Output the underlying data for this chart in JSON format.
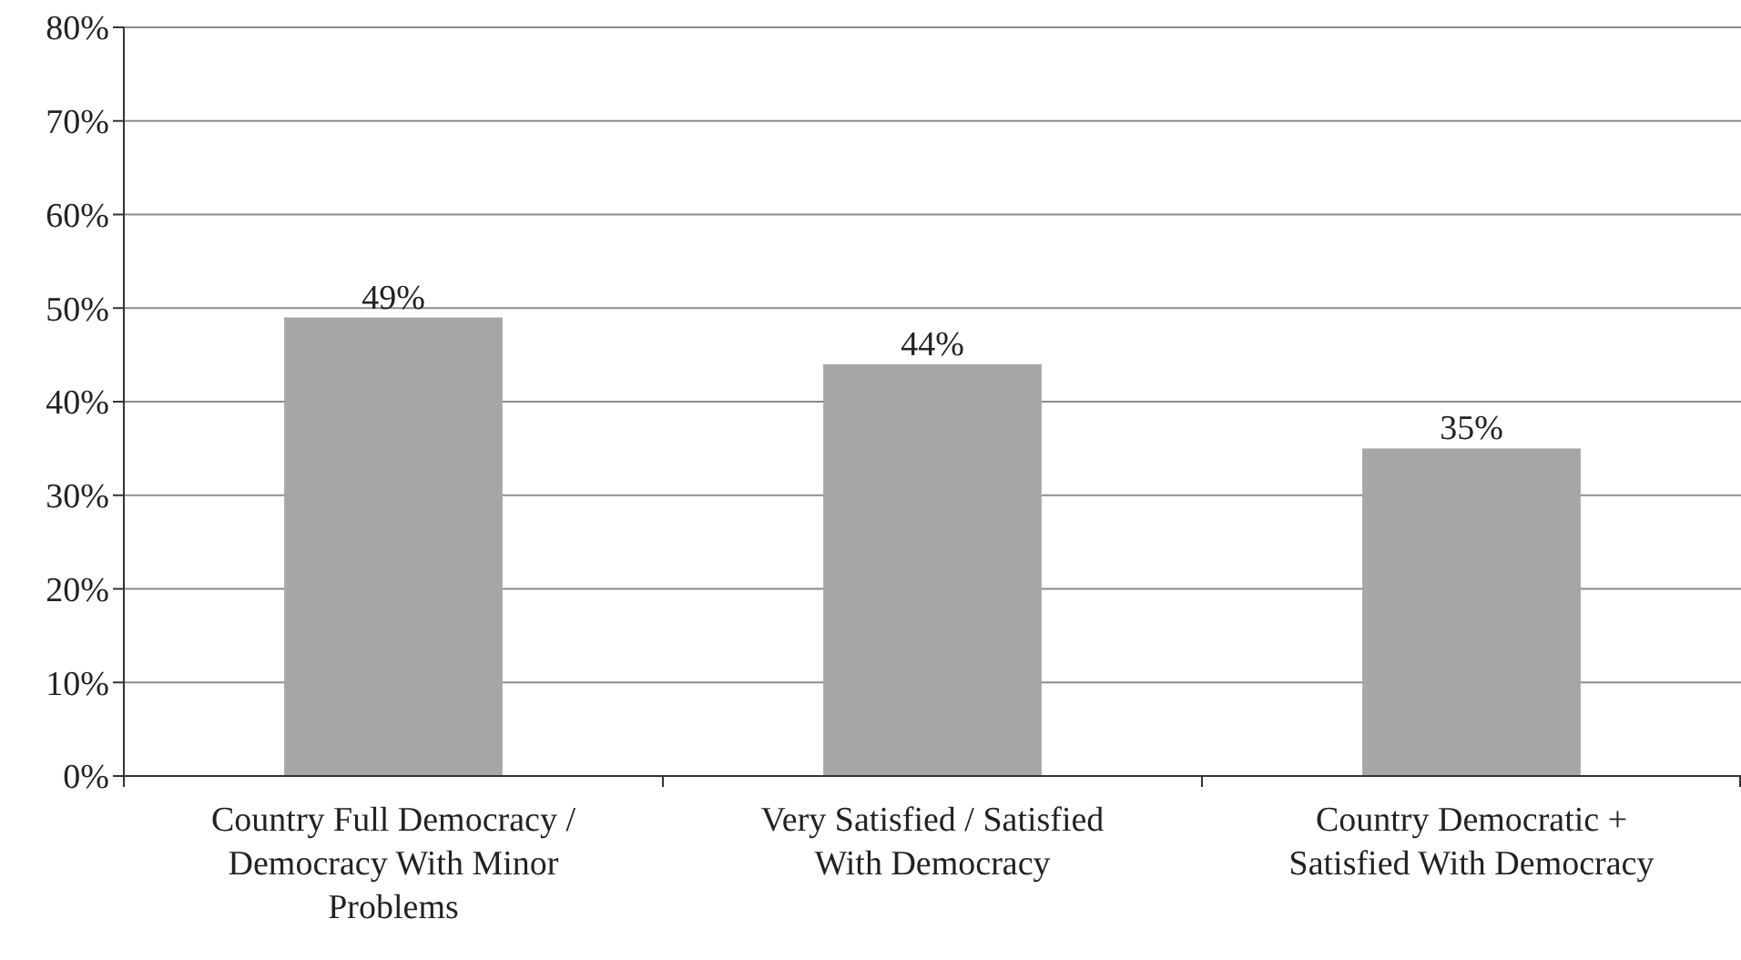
{
  "chart_data": {
    "type": "bar",
    "categories": [
      "Country Full Democracy / Democracy With Minor Problems",
      "Very Satisfied / Satisfied With Democracy",
      "Country Democratic + Satisfied With Democracy"
    ],
    "values": [
      49,
      44,
      35
    ],
    "color": "#a6a6a8",
    "ylim": [
      0,
      80
    ],
    "yticks": [
      {
        "value": 0,
        "label": "0%"
      },
      {
        "value": 10,
        "label": "10%"
      },
      {
        "value": 20,
        "label": "20%"
      },
      {
        "value": 30,
        "label": "30%"
      },
      {
        "value": 40,
        "label": "40%"
      },
      {
        "value": 50,
        "label": "50%"
      },
      {
        "value": 60,
        "label": "60%"
      },
      {
        "value": 70,
        "label": "70%"
      },
      {
        "value": 80,
        "label": "80%"
      }
    ],
    "value_labels": [
      "49%",
      "44%",
      "35%"
    ],
    "grid": "y"
  }
}
